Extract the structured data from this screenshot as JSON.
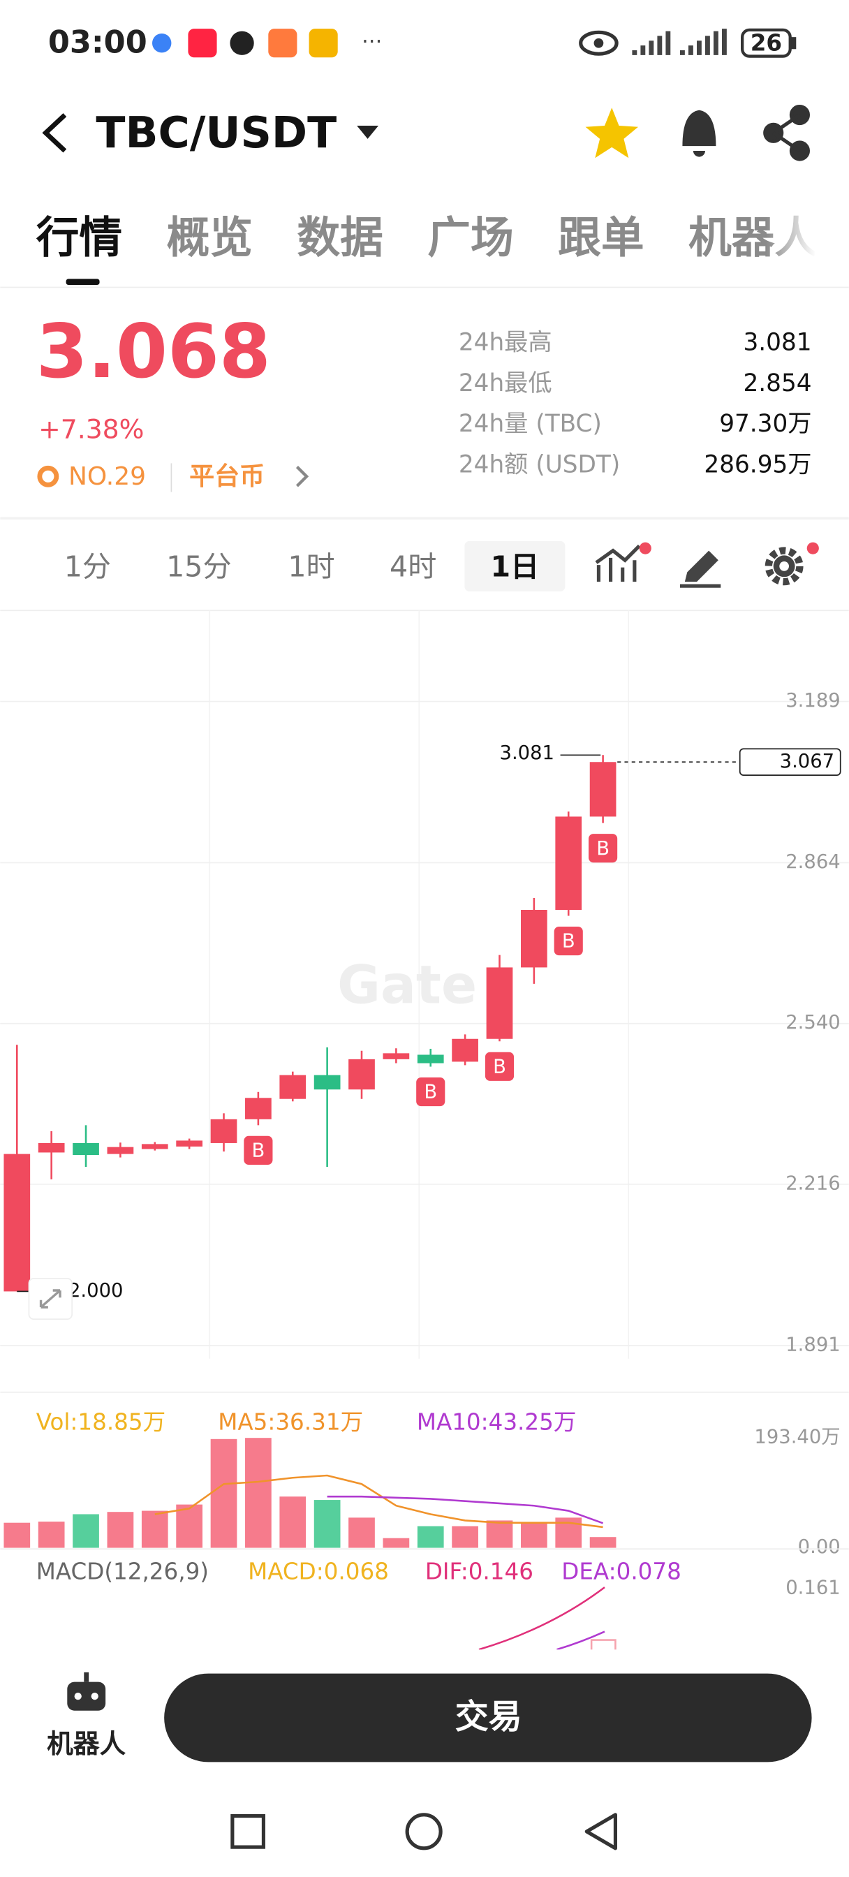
{
  "status_bar": {
    "time": "03:00",
    "battery": "26"
  },
  "header": {
    "title": "TBC/USDT"
  },
  "tabs": [
    "行情",
    "概览",
    "数据",
    "广场",
    "跟单",
    "机器人"
  ],
  "ticker": {
    "price": "3.068",
    "change": "+7.38%",
    "rank": "NO.29",
    "tag": "平台币",
    "stats": [
      {
        "label": "24h最高",
        "value": "3.081"
      },
      {
        "label": "24h最低",
        "value": "2.854"
      },
      {
        "label": "24h量 (TBC)",
        "value": "97.30万"
      },
      {
        "label": "24h额 (USDT)",
        "value": "286.95万"
      }
    ]
  },
  "intervals": [
    "1分",
    "15分",
    "1时",
    "4时",
    "1日"
  ],
  "chart_data": [
    {
      "type": "candlestick",
      "watermark": "Gate",
      "up_color": "#f04a5e",
      "down_color": "#2bbd85",
      "open": [
        2.0,
        2.28,
        2.299,
        2.277,
        2.287,
        2.292,
        2.299,
        2.347,
        2.388,
        2.436,
        2.407,
        2.468,
        2.477,
        2.463,
        2.509,
        2.653,
        2.769,
        2.957
      ],
      "high": [
        2.497,
        2.323,
        2.335,
        2.3,
        2.301,
        2.308,
        2.359,
        2.402,
        2.443,
        2.492,
        2.485,
        2.49,
        2.489,
        2.518,
        2.678,
        2.793,
        2.967,
        3.081
      ],
      "low": [
        2.0,
        2.226,
        2.251,
        2.27,
        2.284,
        2.287,
        2.282,
        2.335,
        2.383,
        2.251,
        2.388,
        2.46,
        2.453,
        2.456,
        2.504,
        2.62,
        2.757,
        2.944
      ],
      "close": [
        2.277,
        2.299,
        2.275,
        2.291,
        2.297,
        2.304,
        2.347,
        2.39,
        2.436,
        2.407,
        2.468,
        2.48,
        2.46,
        2.509,
        2.653,
        2.769,
        2.957,
        3.067
      ],
      "markers": [
        null,
        null,
        null,
        null,
        null,
        null,
        null,
        "B",
        null,
        null,
        null,
        null,
        "B",
        null,
        "B",
        null,
        "B",
        "B"
      ],
      "ylim": [
        1.891,
        3.189
      ],
      "yticks": [
        3.189,
        2.864,
        {
          "value": 2.54,
          "label": "2.540"
        },
        2.216,
        1.891
      ],
      "high_label": {
        "value": 3.081,
        "label": "3.081"
      },
      "low_label": {
        "value": 2.0,
        "label": "2.000"
      },
      "last_label": {
        "value": 3.067,
        "label": "3.067"
      },
      "grid": true
    },
    {
      "type": "bar",
      "label": "Vol:18.85万",
      "up_color": "#f67b8c",
      "down_color": "#56cf9c",
      "values": [
        44,
        46,
        59,
        63,
        65,
        76,
        191,
        193,
        90,
        84,
        53,
        17,
        38,
        38,
        48,
        44,
        53,
        18.85
      ],
      "series": [
        {
          "name": "MA5:36.31万",
          "color": "#f0932b",
          "values": [
            null,
            null,
            null,
            null,
            59,
            69,
            112,
            116,
            123,
            127,
            112,
            74,
            59,
            48,
            44,
            44,
            44,
            36.31
          ]
        },
        {
          "name": "MA10:43.25万",
          "color": "#b03ad0",
          "values": [
            null,
            null,
            null,
            null,
            null,
            null,
            null,
            null,
            null,
            90,
            90,
            88,
            86,
            82,
            78,
            74,
            65,
            43.25
          ]
        }
      ],
      "ylim": [
        0,
        193.4
      ],
      "yticks": [
        {
          "value": 193.4,
          "label": "193.40万"
        },
        {
          "value": 0,
          "label": "0.00"
        }
      ]
    },
    {
      "type": "macd",
      "title": "MACD(12,26,9)",
      "labels": [
        "MACD:0.068",
        "DIF:0.146",
        "DEA:0.078"
      ],
      "yticks": [
        0.161
      ]
    }
  ],
  "bottom_bar": {
    "robot": "机器人",
    "trade": "交易"
  }
}
